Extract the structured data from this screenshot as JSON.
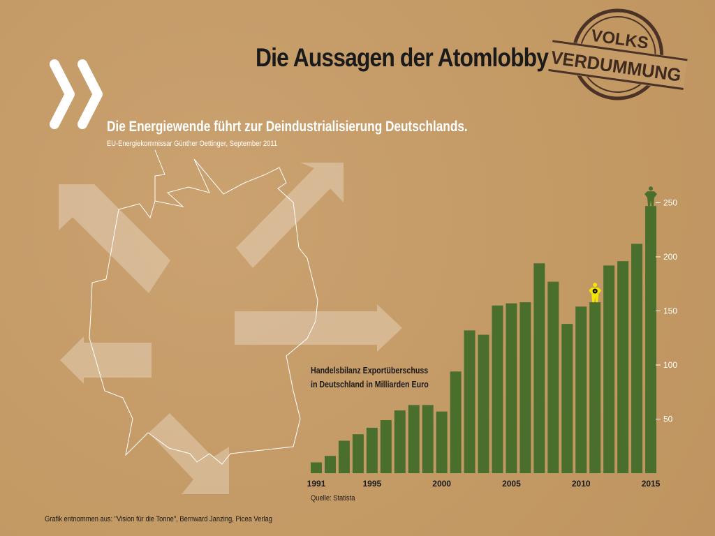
{
  "header": {
    "title": "Die Aussagen der Atomlobby"
  },
  "stamp": {
    "line1": "VOLKS",
    "line2": "VERDUMMUNG"
  },
  "quote": {
    "text": "Die Energiewende führt zur Deindustrialisierung Deutschlands.",
    "source": "EU-Energiekommissar Günther Oettinger, September 2011"
  },
  "footer": {
    "source": "Quelle: Statista",
    "credit": "Grafik entnommen aus: \"Vision für die Tonne\", Bernward Janzing, Picea Verlag"
  },
  "colors": {
    "bar": "#4a6e2c",
    "nuclear_figure": "#f2e600",
    "background": "#c59c68"
  },
  "chart_data": {
    "type": "bar",
    "title": "Handelsbilanz Exportüberschuss in Deutschland in Milliarden Euro",
    "title_lines": [
      "Handelsbilanz Exportüberschuss",
      "in Deutschland in Milliarden Euro"
    ],
    "categories": [
      "1991",
      "1992",
      "1993",
      "1994",
      "1995",
      "1996",
      "1997",
      "1998",
      "1999",
      "2000",
      "2001",
      "2002",
      "2003",
      "2004",
      "2005",
      "2006",
      "2007",
      "2008",
      "2009",
      "2010",
      "2011",
      "2012",
      "2013",
      "2014",
      "2015"
    ],
    "values": [
      10,
      16,
      30,
      36,
      42,
      49,
      58,
      63,
      63,
      57,
      94,
      132,
      128,
      155,
      157,
      158,
      194,
      177,
      138,
      154,
      158,
      192,
      196,
      212,
      247
    ],
    "x_tick_labels": [
      "1991",
      "1995",
      "2000",
      "2005",
      "2010",
      "2015"
    ],
    "y_ticks": [
      50,
      100,
      150,
      200,
      250
    ],
    "y_tick_labels": [
      "50",
      "100",
      "150",
      "200",
      "250"
    ],
    "ylim": [
      0,
      260
    ],
    "xlabel": "",
    "ylabel": "",
    "grid": false,
    "annotations": [
      {
        "category": "2011",
        "icon": "nuclear-worker-figure"
      },
      {
        "category": "2015",
        "icon": "person-figure"
      }
    ]
  }
}
